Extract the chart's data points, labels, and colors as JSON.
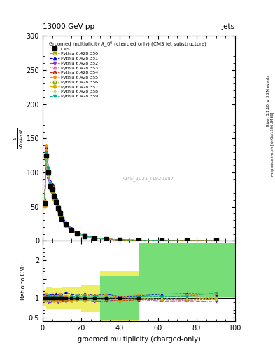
{
  "title_top": "13000 GeV pp",
  "title_right": "Jets",
  "plot_title": "Groomed multiplicity $\\lambda\\_0^0$ (charged only) (CMS jet substructure)",
  "xlabel": "groomed multiplicity (charged-only)",
  "right_label": "Rivet 3.1.10, ≥ 3.2M events",
  "right_label2": "mcplots.cern.ch [arXiv:1306.3436]",
  "watermark": "CMS_2021_I1920187",
  "xlim": [
    0,
    100
  ],
  "ylim_main": [
    0,
    300
  ],
  "ylim_ratio": [
    0.4,
    2.5
  ],
  "series": [
    {
      "label": "Pythia 6.428 350",
      "color": "#aaaa00",
      "marker": "s",
      "linestyle": "--",
      "filled": false
    },
    {
      "label": "Pythia 6.428 351",
      "color": "#0000ee",
      "marker": "^",
      "linestyle": "--",
      "filled": true
    },
    {
      "label": "Pythia 6.428 352",
      "color": "#8833cc",
      "marker": "v",
      "linestyle": "-.",
      "filled": true
    },
    {
      "label": "Pythia 6.428 353",
      "color": "#ff55aa",
      "marker": "^",
      "linestyle": ":",
      "filled": false
    },
    {
      "label": "Pythia 6.428 354",
      "color": "#cc2200",
      "marker": "o",
      "linestyle": "--",
      "filled": false
    },
    {
      "label": "Pythia 6.428 355",
      "color": "#ff8800",
      "marker": "*",
      "linestyle": "--",
      "filled": true
    },
    {
      "label": "Pythia 6.428 356",
      "color": "#88aa00",
      "marker": "s",
      "linestyle": ":",
      "filled": false
    },
    {
      "label": "Pythia 6.428 357",
      "color": "#ddaa00",
      "marker": "D",
      "linestyle": "--",
      "filled": true
    },
    {
      "label": "Pythia 6.428 358",
      "color": "#aadd88",
      "marker": ".",
      "linestyle": ":",
      "filled": true
    },
    {
      "label": "Pythia 6.428 359",
      "color": "#00aa88",
      "marker": "v",
      "linestyle": "--",
      "filled": true
    }
  ],
  "main_x": [
    1,
    2,
    3,
    4,
    5,
    6,
    7,
    8,
    9,
    10,
    12,
    15,
    18,
    22,
    27,
    33,
    40,
    50,
    62,
    75,
    90
  ],
  "cms_y": [
    55,
    125,
    100,
    80,
    75,
    65,
    57,
    48,
    40,
    32,
    24,
    16,
    11,
    7,
    4,
    2.5,
    1.5,
    0.8,
    0.4,
    0.2,
    0.1
  ],
  "pythia_mults": [
    1.0,
    1.1,
    0.94,
    1.03,
    0.97,
    1.06,
    1.02,
    0.96,
    0.99,
    1.04
  ],
  "ratio_bins": [
    [
      0,
      2
    ],
    [
      2,
      5
    ],
    [
      5,
      10
    ],
    [
      10,
      20
    ],
    [
      20,
      30
    ],
    [
      30,
      50
    ],
    [
      50,
      100
    ]
  ],
  "ratio_green_lo": [
    0.92,
    0.9,
    0.92,
    0.93,
    0.93,
    0.42,
    1.05
  ],
  "ratio_green_hi": [
    1.08,
    1.1,
    1.08,
    1.07,
    1.07,
    1.58,
    2.45
  ],
  "ratio_yellow_lo": [
    0.78,
    0.72,
    0.73,
    0.72,
    0.65,
    0.3,
    1.05
  ],
  "ratio_yellow_hi": [
    1.22,
    1.28,
    1.27,
    1.28,
    1.35,
    1.72,
    2.45
  ],
  "background_color": "#ffffff"
}
